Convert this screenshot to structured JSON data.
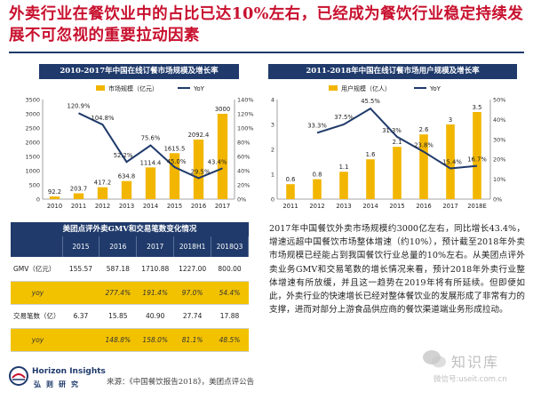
{
  "slide": {
    "title": "外卖行业在餐饮业中的占比已达10%左右，已经成为餐饮行业稳定持续发展不可忽视的重要拉动因素",
    "source": "来源：《中国餐饮报告2018》，美团点评公告",
    "body": "2017年中国餐饮外卖市场规模约3000亿左右，同比增长43.4%，增速远超中国餐饮市场整体增速（约10%），预计截至2018年外卖市场规模已经能占到我国餐饮行业总量的10%左右。从美团点评外卖业务GMV和交易笔数的增长情况来看，预计2018年外卖行业整体增速有所放缓，并且这一趋势在2019年将有所延续。但即便如此，外卖行业的快速增长已经对整体餐饮业的发展形成了非常有力的支撑，进而对部分上游食品供应商的餐饮渠道端业务形成拉动。",
    "logo_en": "Horizon Insights",
    "logo_cn": "弘则研究",
    "watermark_cn": "知识库",
    "watermark_url": "微信号:useit.com.cn"
  },
  "colors": {
    "bar": "#f2b600",
    "line": "#1f3a6b",
    "header": "#1f3a6b",
    "title": "#c8102e"
  },
  "chart_data": [
    {
      "type": "bar",
      "title": "2010-2017年中国在线订餐市场规模及增长率",
      "categories": [
        "2010",
        "2011",
        "2012",
        "2013",
        "2014",
        "2015",
        "2016",
        "2017"
      ],
      "series": [
        {
          "name": "市场规模（亿元）",
          "type": "bar",
          "axis": "left",
          "values": [
            92.2,
            203.7,
            417.2,
            634.8,
            1114.4,
            1615.5,
            2092.4,
            3000
          ],
          "labels": [
            "92.2",
            "203.7",
            "417.2",
            "634.8",
            "1114.4",
            "1615.5",
            "2092.4",
            "3000"
          ]
        },
        {
          "name": "YoY",
          "type": "line",
          "axis": "right",
          "values": [
            null,
            120.9,
            104.8,
            52.2,
            75.6,
            45.0,
            29.5,
            43.4
          ],
          "labels": [
            "",
            "120.9%",
            "104.8%",
            "52.2%",
            "75.6%",
            "45.0%",
            "29.5%",
            "43.4%"
          ]
        }
      ],
      "ylim": [
        0,
        3500
      ],
      "yticks": [
        "0",
        "500",
        "1000",
        "1500",
        "2000",
        "2500",
        "3000",
        "3500"
      ],
      "y2lim": [
        0,
        140
      ],
      "y2ticks": [
        "0%",
        "20%",
        "40%",
        "60%",
        "80%",
        "100%",
        "120%",
        "140%"
      ],
      "legend": "top-center"
    },
    {
      "type": "bar",
      "title": "2011-2018年中国在线订餐市场用户规模及增长率",
      "categories": [
        "2011",
        "2012",
        "2013",
        "2014",
        "2015",
        "2016",
        "2017",
        "2018E"
      ],
      "series": [
        {
          "name": "用户规模（亿人）",
          "type": "bar",
          "axis": "left",
          "values": [
            0.6,
            0.8,
            1.1,
            1.6,
            2.1,
            2.6,
            3.0,
            3.5
          ],
          "labels": [
            "0.6",
            "0.8",
            "1.1",
            "1.6",
            "2.1",
            "2.6",
            "3",
            "3.5"
          ]
        },
        {
          "name": "YoY",
          "type": "line",
          "axis": "right",
          "values": [
            null,
            33.3,
            37.5,
            45.5,
            31.3,
            23.8,
            15.4,
            16.7
          ],
          "labels": [
            "",
            "33.3%",
            "37.5%",
            "45.5%",
            "31.3%",
            "23.8%",
            "15.4%",
            "16.7%"
          ]
        }
      ],
      "ylim": [
        0,
        4
      ],
      "yticks": [
        "0",
        "1",
        "2",
        "3",
        "4"
      ],
      "y2lim": [
        0,
        50
      ],
      "y2ticks": [
        "0%",
        "10%",
        "20%",
        "30%",
        "40%",
        "50%"
      ],
      "legend": "top-center"
    },
    {
      "type": "table",
      "title": "美团点评外卖GMV和交易笔数变化情况",
      "columns": [
        "",
        "2015",
        "2016",
        "2017",
        "2018H1",
        "2018Q3"
      ],
      "rows": [
        [
          "GMV（亿元）",
          "155.57",
          "587.18",
          "1710.88",
          "1227.00",
          "800.00"
        ],
        [
          "yoy",
          "",
          "277.4%",
          "191.4%",
          "97.0%",
          "54.4%"
        ],
        [
          "交易笔数（亿）",
          "6.37",
          "15.85",
          "40.90",
          "27.74",
          "17.88"
        ],
        [
          "yoy",
          "",
          "148.8%",
          "158.0%",
          "81.1%",
          "48.5%"
        ]
      ]
    }
  ]
}
